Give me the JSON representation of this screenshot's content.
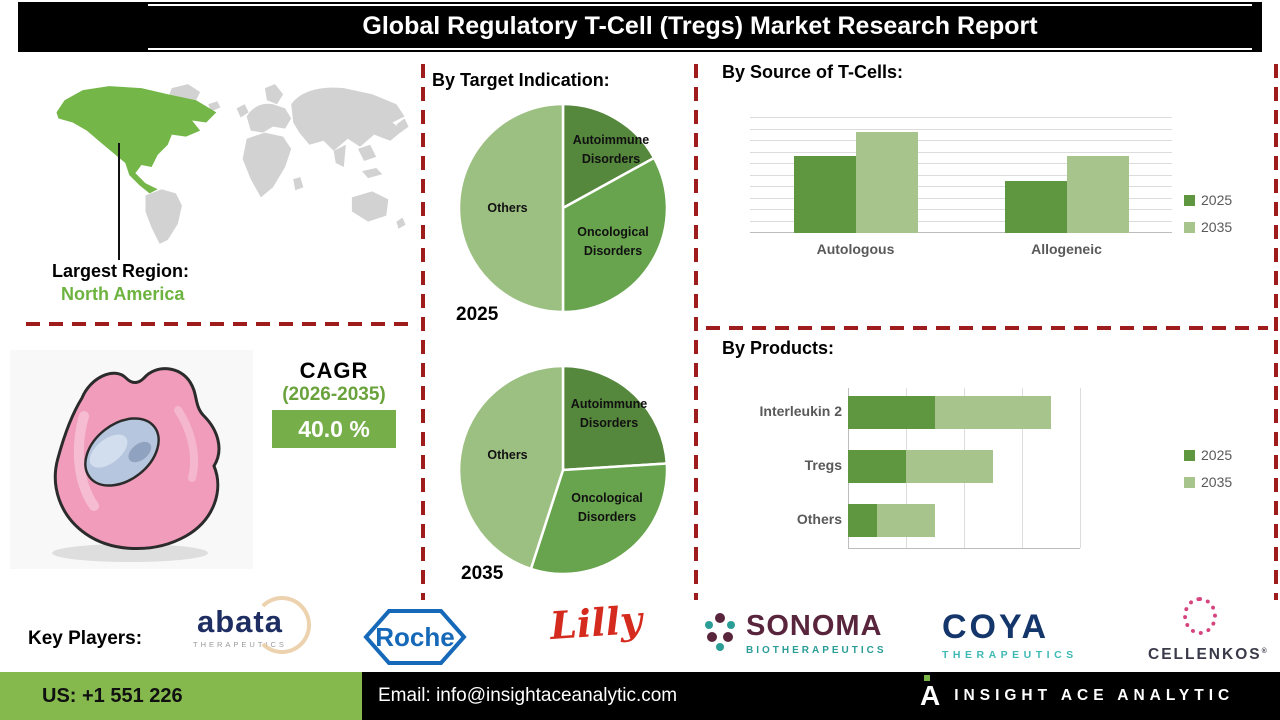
{
  "title": "Global Regulatory T-Cell (Tregs) Market Research Report",
  "colors": {
    "series_2025": "#5f9741",
    "series_2035": "#a6c48c",
    "map_highlight": "#74b748",
    "region_text": "#6db33f",
    "cagr_badge": "#76ae4a",
    "cagr_period_text": "#6aa23c",
    "divider_red": "#9e1c1c",
    "footer_green": "#85b94e"
  },
  "map": {
    "largest_region_label": "Largest Region:",
    "largest_region_value": "North America"
  },
  "cagr": {
    "label": "CAGR",
    "period": "(2026-2035)",
    "value": "40.0 %"
  },
  "chart_data": [
    {
      "id": "by_target_indication",
      "type": "pie",
      "title": "By Target Indication:",
      "slice_colors": [
        "#55873c",
        "#68a44d",
        "#9cbf82"
      ],
      "pies": [
        {
          "label": "2025",
          "slices": [
            {
              "name": "Autoimmune Disorders",
              "value": 17
            },
            {
              "name": "Oncological Disorders",
              "value": 33
            },
            {
              "name": "Others",
              "value": 50
            }
          ]
        },
        {
          "label": "2035",
          "slices": [
            {
              "name": "Autoimmune Disorders",
              "value": 24
            },
            {
              "name": "Oncological Disorders",
              "value": 31
            },
            {
              "name": "Others",
              "value": 45
            }
          ]
        }
      ]
    },
    {
      "id": "by_source_of_t_cells",
      "type": "bar",
      "title": "By Source of T-Cells:",
      "categories": [
        "Autologous",
        "Allogeneic"
      ],
      "series": [
        {
          "name": "2025",
          "color": "#5f9741",
          "values": [
            67,
            45
          ]
        },
        {
          "name": "2035",
          "color": "#a6c48c",
          "values": [
            88,
            67
          ]
        }
      ],
      "ylim": [
        0,
        100
      ],
      "gridlines": 10,
      "legend_position": "right"
    },
    {
      "id": "by_products",
      "type": "bar-horizontal-stacked",
      "title": "By Products:",
      "categories": [
        "Interleukin 2",
        "Tregs",
        "Others"
      ],
      "series": [
        {
          "name": "2025",
          "color": "#5f9741",
          "values": [
            15,
            10,
            5
          ]
        },
        {
          "name": "2035",
          "color": "#a6c48c",
          "values": [
            20,
            15,
            10
          ]
        }
      ],
      "xlim": [
        0,
        40
      ],
      "gridlines": 5,
      "legend_position": "right"
    }
  ],
  "key_players": {
    "label": "Key Players:",
    "players": [
      {
        "name": "abata",
        "tagline": "THERAPEUTICS"
      },
      {
        "name": "Roche",
        "tagline": ""
      },
      {
        "name": "Lilly",
        "tagline": ""
      },
      {
        "name": "SONOMA",
        "tagline": "BIOTHERAPEUTICS"
      },
      {
        "name": "COYA",
        "tagline": "THERAPEUTICS"
      },
      {
        "name": "CELLENKOS",
        "tagline": "",
        "mark": "®"
      }
    ]
  },
  "footer": {
    "phone": "US: +1 551 226",
    "email": "Email: info@insightaceanalytic.com",
    "brand": "INSIGHT ACE ANALYTIC",
    "brand_monogram": "A"
  }
}
